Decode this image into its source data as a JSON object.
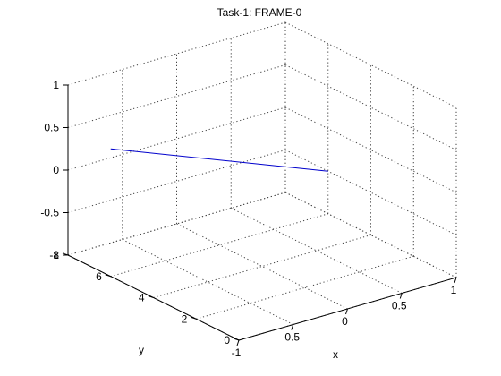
{
  "chart_data": {
    "type": "line",
    "title": "Task-1: FRAME-0",
    "xlabel": "x",
    "ylabel": "y",
    "zlabel": "",
    "xlim": [
      -1,
      1
    ],
    "ylim": [
      0,
      8
    ],
    "zlim": [
      -1,
      1
    ],
    "x_ticks": [
      -1,
      -0.5,
      0,
      0.5,
      1
    ],
    "x_tick_labels": [
      "-1",
      "-0.5",
      "0",
      "0.5",
      "1"
    ],
    "y_ticks": [
      0,
      2,
      4,
      6,
      8
    ],
    "y_tick_labels": [
      "0",
      "2",
      "4",
      "6",
      "8"
    ],
    "z_ticks": [
      -1,
      -0.5,
      0,
      0.5,
      1
    ],
    "z_tick_labels": [
      "-1",
      "-0.5",
      "0",
      "0.5",
      "1"
    ],
    "grid": true,
    "view": "3d",
    "series": [
      {
        "color": "#0000cc",
        "x": [
          -1,
          1
        ],
        "y": [
          6,
          6
        ],
        "z": [
          0.5,
          -0.5
        ]
      }
    ]
  }
}
